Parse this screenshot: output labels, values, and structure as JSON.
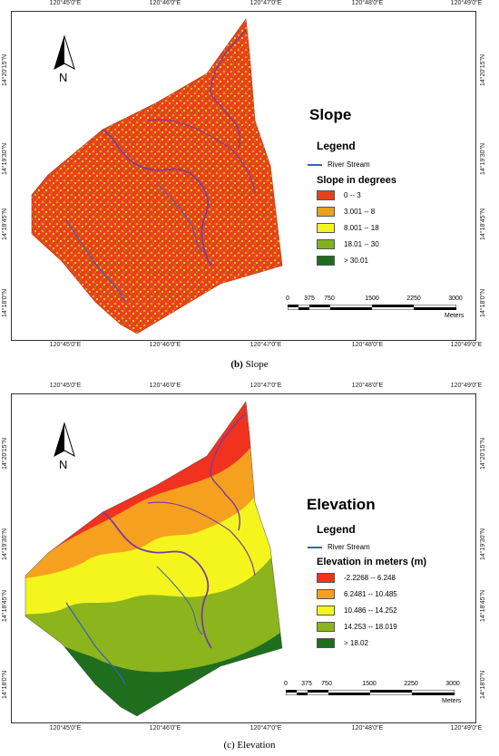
{
  "lon_ticks_top": [
    "120°45'0\"E",
    "120°46'0\"E",
    "120°47'0\"E",
    "120°48'0\"E",
    "120°49'0\"E"
  ],
  "lon_ticks_bottom": [
    "120°45'0\"E",
    "120°46'0\"E",
    "120°47'0\"E",
    "120°48'0\"E",
    "120°49'0\"E"
  ],
  "lat_ticks": [
    "14°20'15\"N",
    "14°19'30\"N",
    "14°18'45\"N",
    "14°18'0\"N"
  ],
  "north_label": "N",
  "legend_label": "Legend",
  "river_label": "River Stream",
  "river_color": "#3a62b8",
  "scale": {
    "ticks": [
      "0",
      "375",
      "750",
      "1500",
      "2250",
      "3000"
    ],
    "unit": "Meters"
  },
  "slope": {
    "title": "Slope",
    "legend_subtitle": "Slope in degrees",
    "classes": [
      {
        "label": "0 -- 3",
        "color": "#e8401c"
      },
      {
        "label": "3.001 -- 8",
        "color": "#e8a21c"
      },
      {
        "label": "8.001 -- 18",
        "color": "#f5f51e"
      },
      {
        "label": "18.01 -- 30",
        "color": "#7fb21c"
      },
      {
        "label": "> 30.01",
        "color": "#1e6b1e"
      }
    ],
    "caption_letter": "(b)",
    "caption_text": " Slope"
  },
  "elevation": {
    "title": "Elevation",
    "legend_subtitle": "Elevation in meters (m)",
    "classes": [
      {
        "label": "-2.2268 -- 6.248",
        "color": "#f0321e"
      },
      {
        "label": "6.2481 -- 10.485",
        "color": "#f5a01e"
      },
      {
        "label": "10.486 -- 14.252",
        "color": "#f5f51e"
      },
      {
        "label": "14.253 -- 18.019",
        "color": "#8cb41c"
      },
      {
        "label": "> 18.02",
        "color": "#1e6e1e"
      }
    ],
    "caption": "(c) Elevation"
  }
}
